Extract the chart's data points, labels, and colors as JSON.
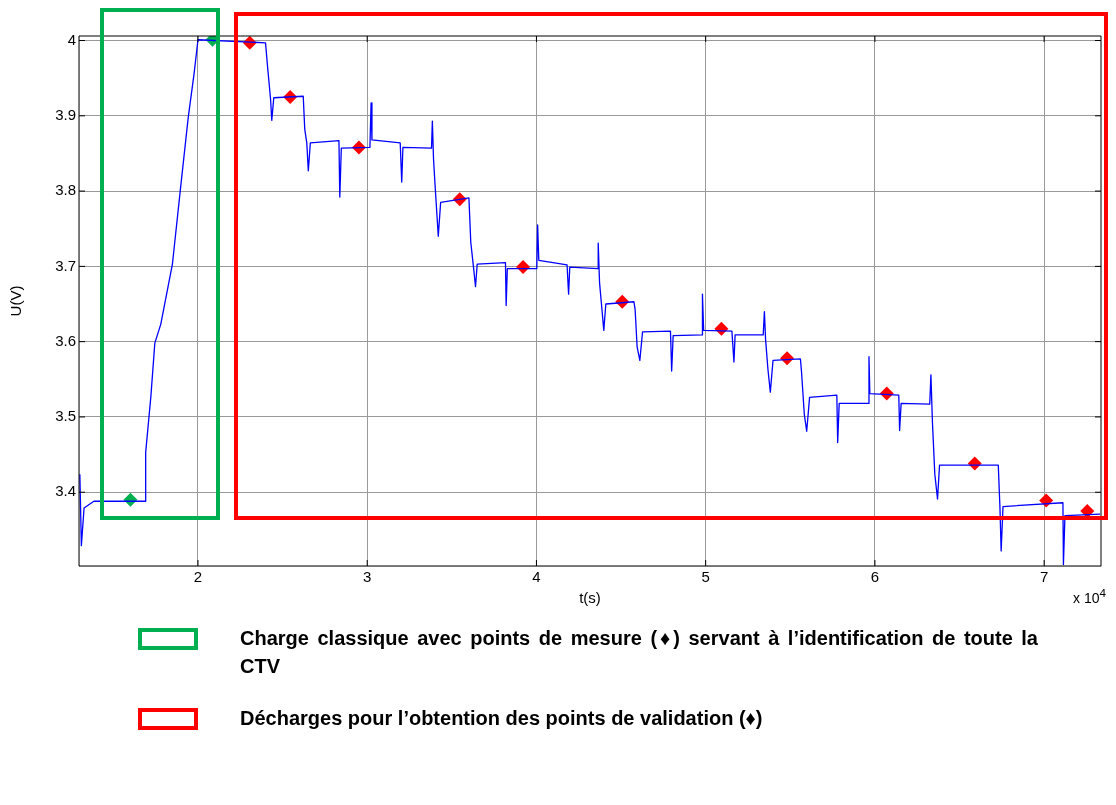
{
  "chart_data": {
    "type": "line",
    "xlabel": "t(s)",
    "ylabel": "U(V)",
    "xlim": [
      1.297,
      7.336
    ],
    "xticks": [
      2,
      3,
      4,
      5,
      6,
      7
    ],
    "ylim": [
      3.302,
      4.006
    ],
    "yticks": [
      3.4,
      3.5,
      3.6,
      3.7,
      3.8,
      3.9,
      4
    ],
    "grid": true,
    "legend": "bottom",
    "annotations": [
      "x 10$^{4}$"
    ],
    "series": [
      {
        "type": "line",
        "color": "#0000ff",
        "marker": "none",
        "x": [
          1.302,
          1.311,
          1.327,
          1.385,
          1.687,
          1.691,
          1.722,
          1.745,
          1.78,
          1.849,
          1.896,
          1.942,
          1.977,
          2.0,
          2.399,
          2.413,
          2.429,
          2.436,
          2.448,
          2.622,
          2.631,
          2.643,
          2.652,
          2.664,
          2.833,
          2.838,
          2.847,
          3.016,
          3.023,
          3.028,
          3.195,
          3.204,
          3.211,
          3.38,
          3.385,
          3.392,
          3.404,
          3.42,
          3.434,
          3.601,
          3.612,
          3.629,
          3.64,
          3.65,
          3.817,
          3.821,
          3.828,
          4.002,
          4.007,
          4.014,
          4.181,
          4.19,
          4.197,
          4.364,
          4.365,
          4.373,
          4.387,
          4.398,
          4.41,
          4.576,
          4.583,
          4.595,
          4.611,
          4.627,
          4.792,
          4.799,
          4.808,
          4.979,
          4.981,
          4.988,
          5.155,
          5.167,
          5.174,
          5.34,
          5.347,
          5.354,
          5.368,
          5.382,
          5.398,
          5.56,
          5.567,
          5.583,
          5.597,
          5.614,
          5.775,
          5.78,
          5.789,
          5.961,
          5.965,
          5.97,
          6.141,
          6.146,
          6.155,
          6.324,
          6.331,
          6.34,
          6.354,
          6.37,
          6.382,
          6.729,
          6.739,
          6.746,
          6.757,
          7.111,
          7.114,
          7.123,
          7.331
        ],
        "values": [
          3.424,
          3.329,
          3.379,
          3.388,
          3.388,
          3.453,
          3.528,
          3.598,
          3.623,
          3.703,
          3.802,
          3.897,
          3.956,
          4.001,
          3.997,
          3.961,
          3.922,
          3.894,
          3.924,
          3.926,
          3.882,
          3.864,
          3.827,
          3.864,
          3.867,
          3.792,
          3.857,
          3.858,
          3.917,
          3.868,
          3.864,
          3.812,
          3.858,
          3.857,
          3.893,
          3.842,
          3.797,
          3.74,
          3.785,
          3.791,
          3.732,
          3.697,
          3.673,
          3.703,
          3.705,
          3.648,
          3.697,
          3.697,
          3.755,
          3.708,
          3.702,
          3.663,
          3.699,
          3.697,
          3.731,
          3.678,
          3.643,
          3.615,
          3.65,
          3.653,
          3.643,
          3.593,
          3.575,
          3.613,
          3.614,
          3.561,
          3.608,
          3.609,
          3.663,
          3.615,
          3.614,
          3.573,
          3.609,
          3.609,
          3.64,
          3.603,
          3.563,
          3.533,
          3.575,
          3.577,
          3.558,
          3.503,
          3.481,
          3.526,
          3.529,
          3.466,
          3.518,
          3.518,
          3.58,
          3.531,
          3.529,
          3.482,
          3.518,
          3.517,
          3.556,
          3.493,
          3.424,
          3.391,
          3.436,
          3.436,
          3.379,
          3.322,
          3.381,
          3.386,
          3.304,
          3.369,
          3.371
        ]
      },
      {
        "type": "scatter",
        "name": "Charge classique avec points de mesure (♦) servant à l’identification de toute la CTV",
        "color": "#00b050",
        "marker": "diamond",
        "x": [
          1.601,
          2.086
        ],
        "values": [
          3.39,
          4.001
        ]
      },
      {
        "type": "scatter",
        "name": "Décharges pour l’obtention des points de validation (♦)",
        "color": "#ff0000",
        "marker": "diamond",
        "x": [
          2.306,
          2.545,
          2.951,
          3.547,
          3.921,
          4.507,
          5.093,
          5.481,
          6.07,
          6.59,
          7.012,
          7.255
        ],
        "values": [
          3.997,
          3.925,
          3.858,
          3.789,
          3.699,
          3.653,
          3.617,
          3.578,
          3.531,
          3.438,
          3.389,
          3.375
        ]
      }
    ]
  }
}
